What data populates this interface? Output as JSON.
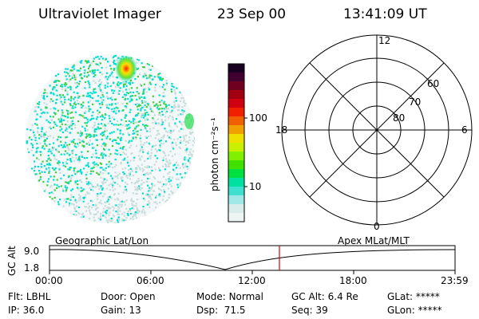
{
  "header": {
    "instrument": "Ultraviolet Imager",
    "date": "23 Sep 00",
    "time": "13:41:09 UT"
  },
  "colorbar": {
    "label": "photon cm⁻²s⁻¹",
    "ticks": [
      "100",
      "10"
    ]
  },
  "polar": {
    "mlt_labels": {
      "top": "12",
      "left": "18",
      "right": "6",
      "bottom": "0"
    },
    "lat_labels": [
      "60",
      "70",
      "80"
    ]
  },
  "altitude_strip": {
    "ylabel": "GC Alt",
    "y_ticks": [
      "9.0",
      "1.8"
    ],
    "left_caption": "Geographic Lat/Lon",
    "right_caption": "Apex MLat/MLT",
    "x_ticks": [
      "00:00",
      "06:00",
      "12:00",
      "18:00",
      "23:59"
    ],
    "marker_color": "#e00000"
  },
  "status": {
    "row1": [
      {
        "label": "Flt:",
        "value": "LBHL"
      },
      {
        "label": "Door:",
        "value": "Open"
      },
      {
        "label": "Mode:",
        "value": "Normal"
      },
      {
        "label": "GC Alt:",
        "value": "6.4 Re"
      },
      {
        "label": "GLat:",
        "value": "*****"
      }
    ],
    "row2": [
      {
        "label": "IP:",
        "value": "36.0"
      },
      {
        "label": "Gain:",
        "value": "13"
      },
      {
        "label": "Dsp:",
        "value": "71.5"
      },
      {
        "label": "Seq:",
        "value": "39"
      },
      {
        "label": "GLon:",
        "value": "*****"
      }
    ]
  },
  "colors": {
    "background": "#ffffff",
    "ink": "#000000",
    "speckle_cyan": "#00e0d0",
    "speckle_green": "#40d040",
    "speckle_pale": "#c8dcdc",
    "hotspot": "#ffe000"
  }
}
